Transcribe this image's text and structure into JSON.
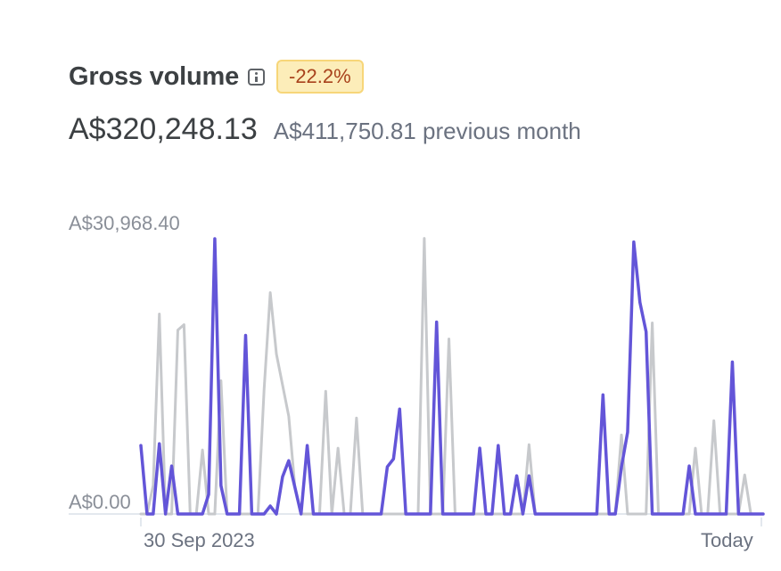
{
  "header": {
    "title": "Gross volume",
    "badge": "-22.2%",
    "amount": "A$320,248.13",
    "previous": "A$411,750.81 previous month"
  },
  "chart_data": {
    "type": "line",
    "ymax_label": "A$30,968.40",
    "ymin_label": "A$0.00",
    "x_start_label": "30 Sep 2023",
    "x_end_label": "Today",
    "ylim": [
      0,
      30968.4
    ],
    "colors": {
      "current": "#6355d8",
      "previous": "#c7c9cc",
      "baseline": "#e3e8ee"
    },
    "series": [
      {
        "key": "current",
        "values": [
          7700,
          0,
          0,
          7900,
          0,
          5400,
          0,
          0,
          0,
          0,
          0,
          2200,
          30968,
          3200,
          0,
          0,
          0,
          20100,
          0,
          0,
          0,
          900,
          0,
          4200,
          6000,
          3000,
          0,
          7700,
          0,
          0,
          0,
          0,
          0,
          0,
          0,
          0,
          0,
          0,
          0,
          0,
          5300,
          6200,
          11800,
          0,
          0,
          0,
          0,
          0,
          21600,
          0,
          0,
          0,
          0,
          0,
          0,
          7400,
          0,
          0,
          7700,
          0,
          0,
          4300,
          0,
          4300,
          0,
          0,
          0,
          0,
          0,
          0,
          0,
          0,
          0,
          0,
          0,
          13400,
          0,
          0,
          5300,
          9200,
          30600,
          23800,
          20500,
          0,
          0,
          0,
          0,
          0,
          0,
          5400,
          0,
          0,
          0,
          0,
          0,
          0,
          17100,
          0,
          0,
          0,
          0,
          0
        ]
      },
      {
        "key": "previous",
        "values": [
          0,
          0,
          3200,
          22500,
          0,
          0,
          20700,
          21300,
          0,
          0,
          7200,
          0,
          0,
          15000,
          0,
          0,
          0,
          0,
          0,
          0,
          14000,
          24900,
          18000,
          14500,
          11000,
          3000,
          0,
          0,
          0,
          0,
          13800,
          0,
          7400,
          0,
          0,
          10800,
          0,
          0,
          0,
          0,
          0,
          0,
          0,
          0,
          0,
          0,
          31000,
          0,
          0,
          0,
          19700,
          0,
          0,
          0,
          0,
          0,
          0,
          0,
          0,
          0,
          0,
          0,
          0,
          7800,
          0,
          0,
          0,
          0,
          0,
          0,
          0,
          0,
          0,
          0,
          0,
          0,
          0,
          0,
          8900,
          0,
          0,
          0,
          0,
          21500,
          0,
          0,
          0,
          0,
          0,
          0,
          7400,
          0,
          0,
          10500,
          0,
          0,
          0,
          0,
          4400,
          0,
          0,
          0
        ]
      }
    ]
  }
}
